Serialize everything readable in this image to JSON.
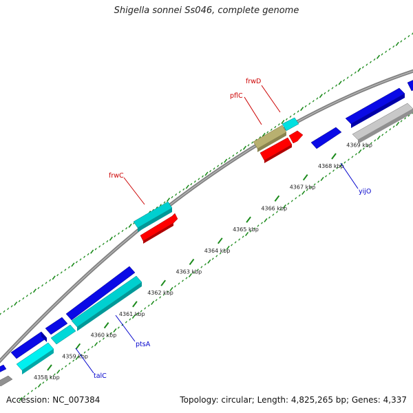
{
  "title": "Shigella sonnei Ss046, complete genome",
  "footer": {
    "accession": "Accession: NC_007384",
    "summary": "Topology: circular; Length: 4,825,265 bp; Genes: 4,337"
  },
  "colors": {
    "forward_cds": "#0a0ae6",
    "forward_light": "#00e0e0",
    "reverse_cds": "#ff0000",
    "reverse_light": "#c8c8c8",
    "trna_like": "#b8b070",
    "backbone": "#808080",
    "tick": "#1a8a1a",
    "label_forward": "#0000cc",
    "label_reverse": "#cc0000"
  },
  "ticks": [
    "4358 kbp",
    "4359 kbp",
    "4360 kbp",
    "4361 kbp",
    "4362 kbp",
    "4363 kbp",
    "4364 kbp",
    "4365 kbp",
    "4366 kbp",
    "4367 kbp",
    "4368 kbp",
    "4369 kbp"
  ],
  "gene_labels": [
    {
      "name": "frwD",
      "strand": "reverse"
    },
    {
      "name": "pflC",
      "strand": "reverse"
    },
    {
      "name": "frwC",
      "strand": "reverse"
    },
    {
      "name": "yijO",
      "strand": "forward"
    },
    {
      "name": "ptsA",
      "strand": "forward"
    },
    {
      "name": "talC",
      "strand": "forward"
    }
  ]
}
